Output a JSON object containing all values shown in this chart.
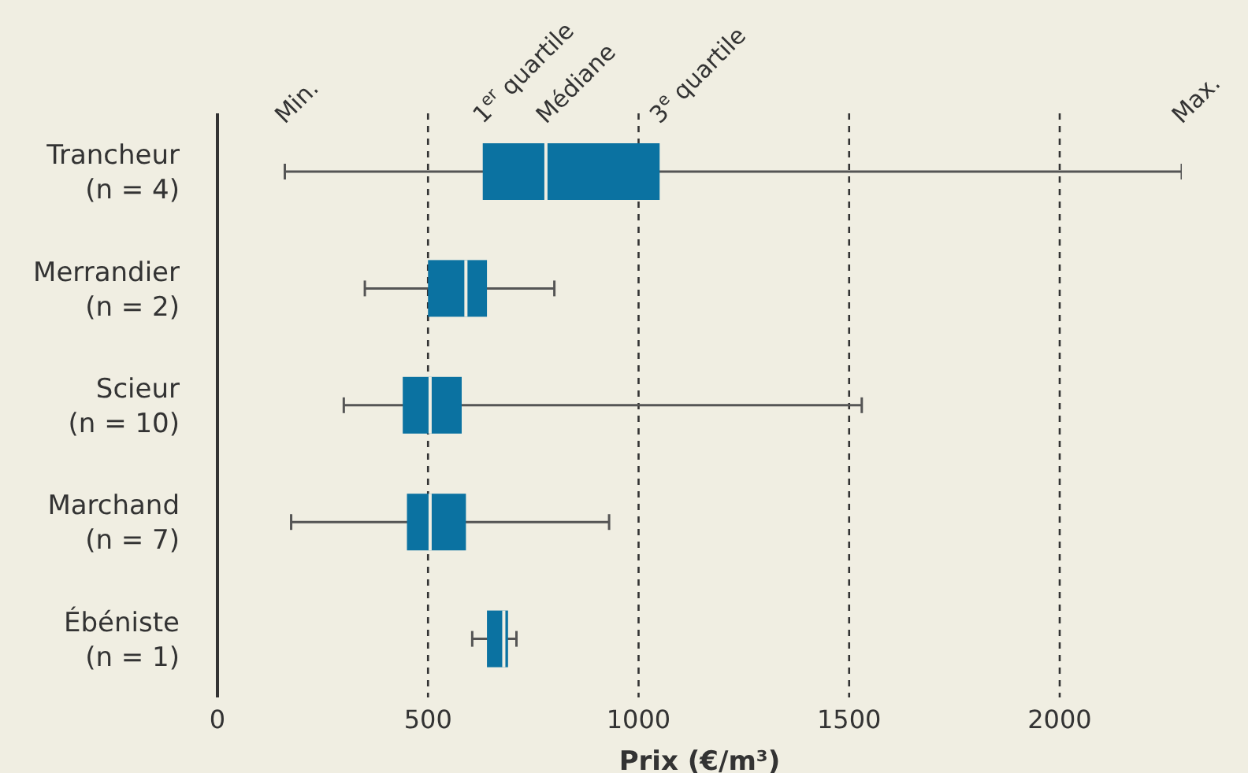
{
  "chart_data": {
    "type": "box",
    "orientation": "horizontal",
    "xlabel": "Prix (€/m³)",
    "categories": [
      "Trancheur\n(n = 4)",
      "Merrandier\n(n = 2)",
      "Scieur\n(n = 10)",
      "Marchand\n(n = 7)",
      "Ébéniste\n(n = 1)"
    ],
    "color": "#0b72a1",
    "boxes": [
      {
        "low": 160,
        "q1": 630,
        "median": 780,
        "q3": 1050,
        "high": 2290
      },
      {
        "low": 350,
        "q1": 500,
        "median": 590,
        "q3": 640,
        "high": 800
      },
      {
        "low": 300,
        "q1": 440,
        "median": 505,
        "q3": 580,
        "high": 1530
      },
      {
        "low": 175,
        "q1": 450,
        "median": 505,
        "q3": 590,
        "high": 930
      },
      {
        "low": 605,
        "q1": 640,
        "median": 680,
        "q3": 690,
        "high": 710
      }
    ],
    "xlim": [
      0,
      2290
    ],
    "xticks": [
      0,
      500,
      1000,
      1500,
      2000
    ],
    "grid": "x",
    "annotations": [
      {
        "text": "Min.",
        "x": 160,
        "y": "Trancheur\n(n = 4)"
      },
      {
        "text": "1$^{er}$ quartile",
        "x": 630,
        "y": "Trancheur\n(n = 4)"
      },
      {
        "text": "Médiane",
        "x": 780,
        "y": "Trancheur\n(n = 4)"
      },
      {
        "text": "3$^{e}$ quartile",
        "x": 1050,
        "y": "Trancheur\n(n = 4)"
      },
      {
        "text": "Max.",
        "x": 2290,
        "y": "Trancheur\n(n = 4)"
      }
    ]
  }
}
